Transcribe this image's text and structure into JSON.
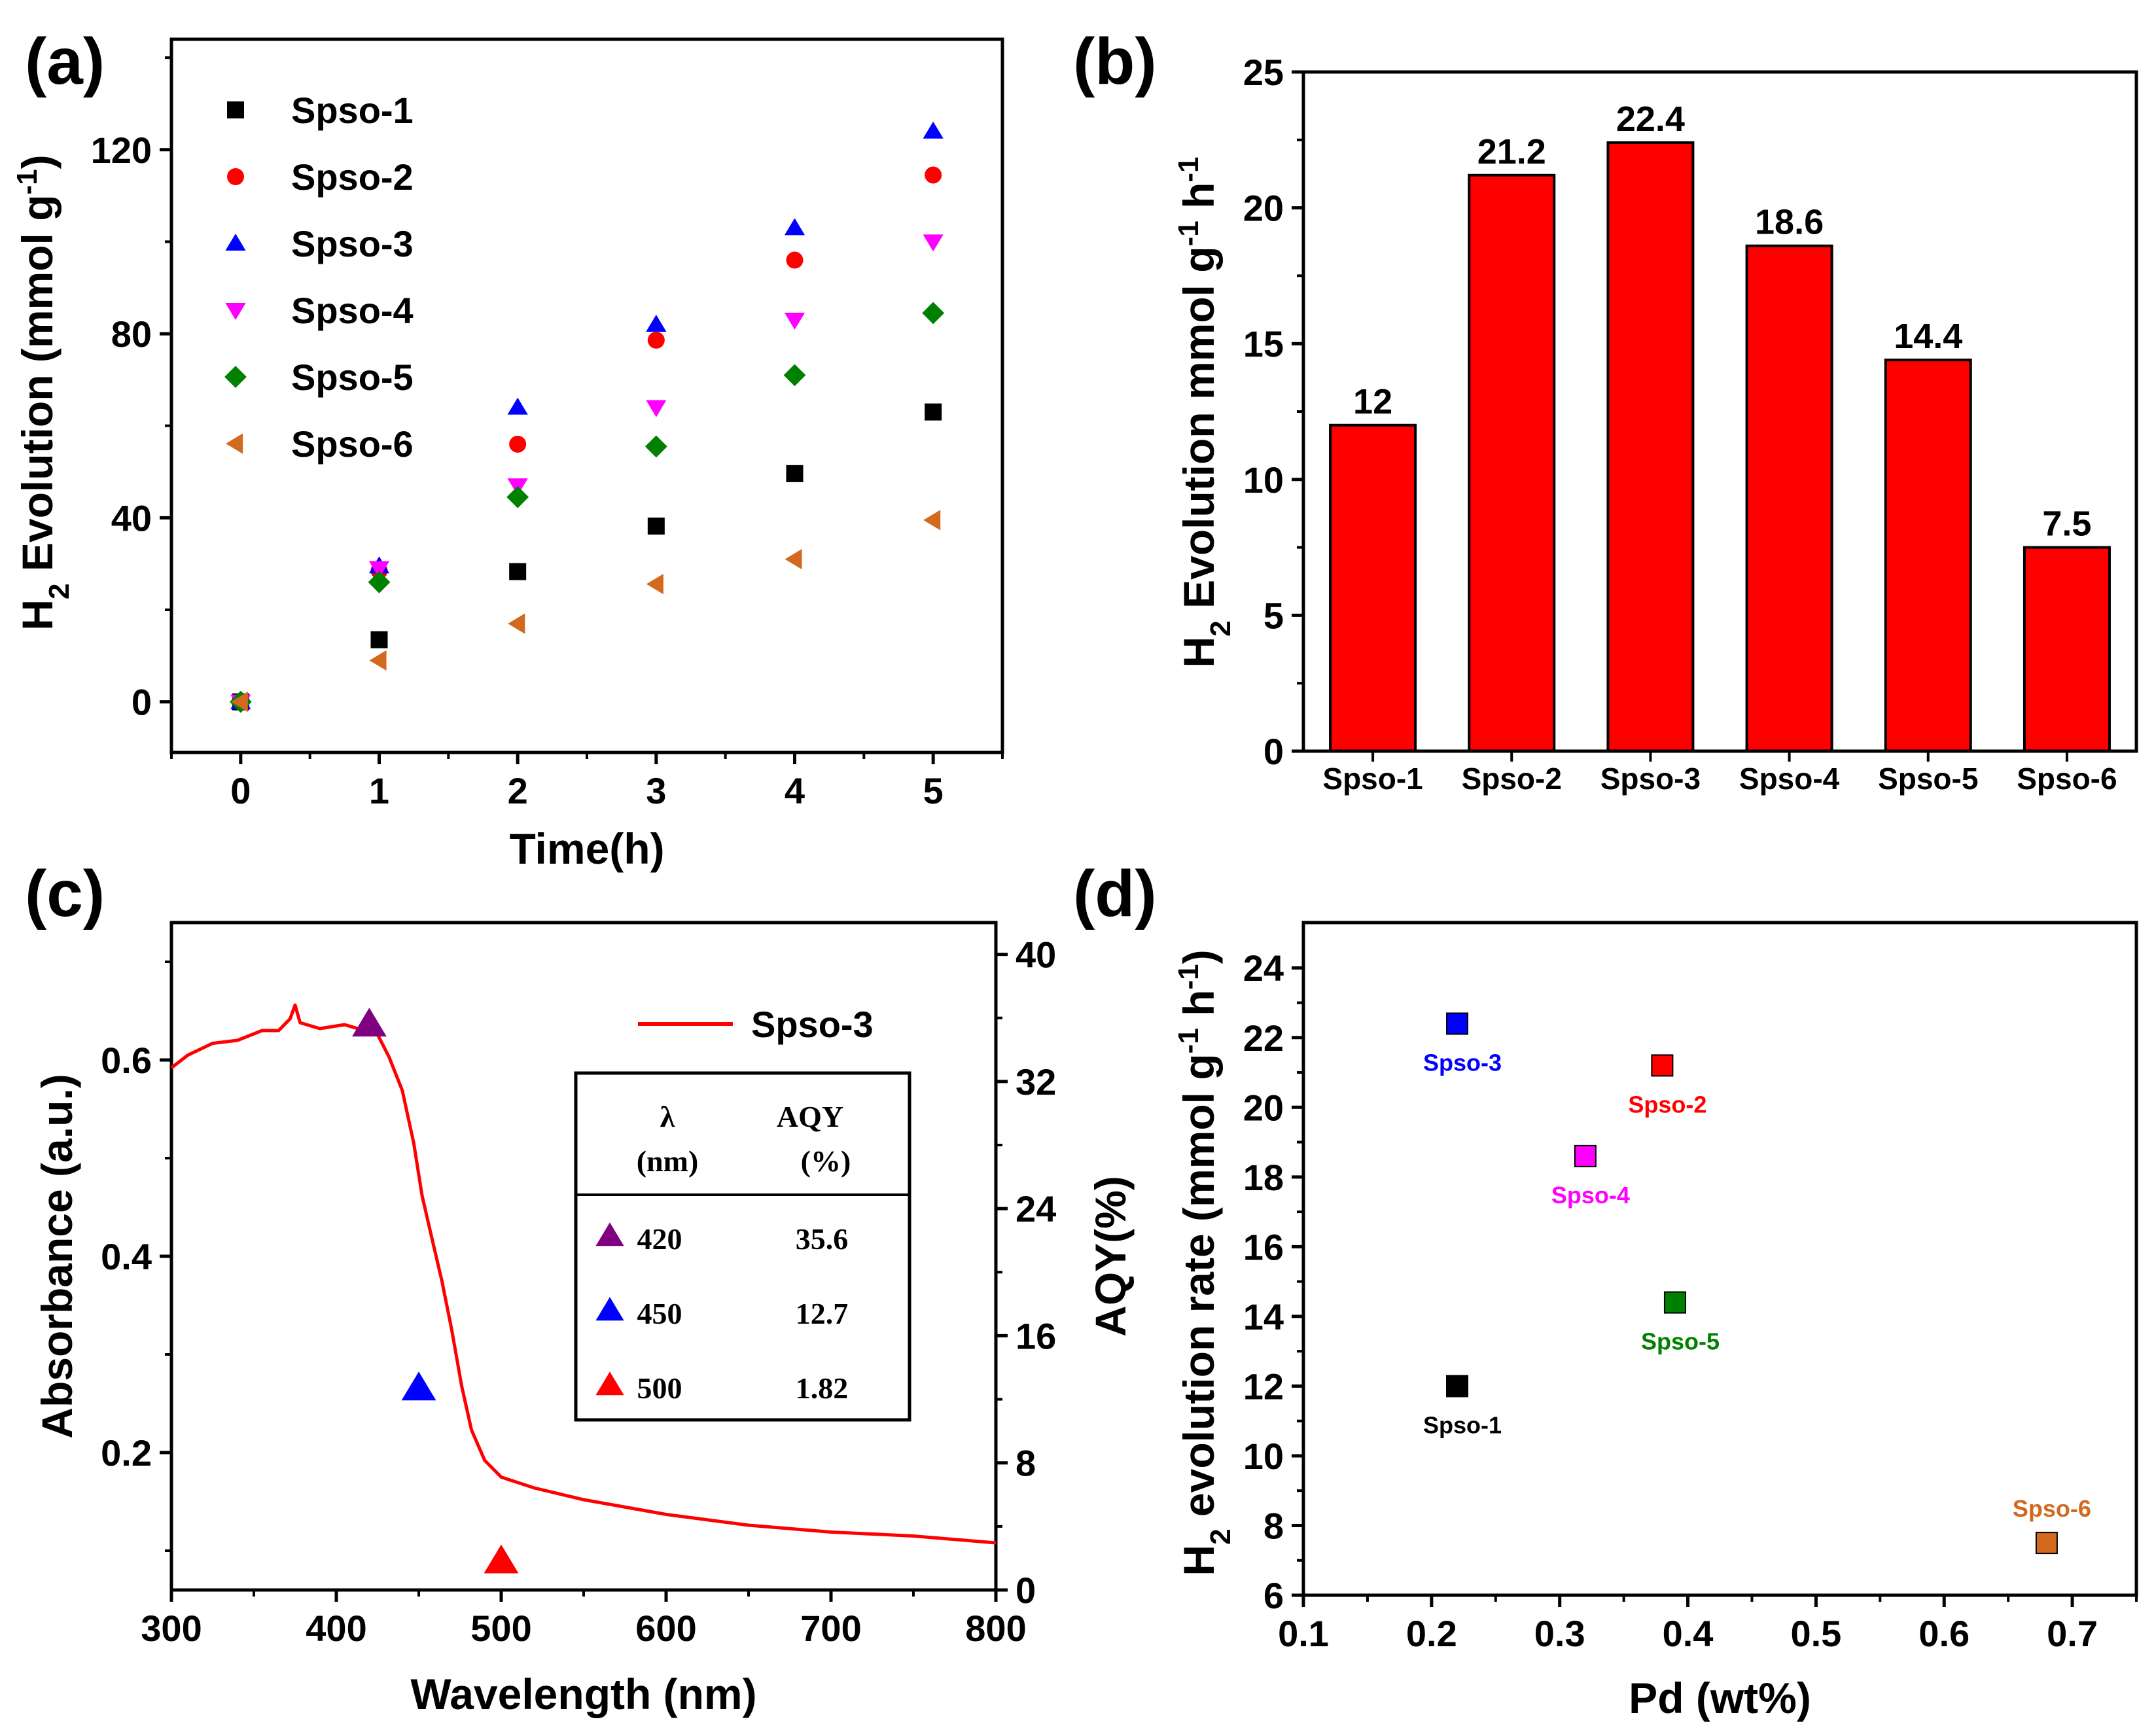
{
  "chart_data": [
    {
      "panel": "(a)",
      "type": "scatter",
      "xlabel": "Time(h)",
      "ylabel": "H2 Evolution (mmol g-1)",
      "ylabel_parts": {
        "main": "H",
        "sub": "2",
        "rest": " Evolution (mmol g",
        "sup": "-1",
        "end": ")"
      },
      "xlim": [
        -0.5,
        5.5
      ],
      "ylim": [
        -11,
        144
      ],
      "xticks": [
        0,
        1,
        2,
        3,
        4,
        5
      ],
      "yticks": [
        0,
        40,
        80,
        120
      ],
      "x": [
        0,
        1,
        2,
        3,
        4,
        5
      ],
      "series": [
        {
          "name": "Spso-1",
          "marker": "square",
          "color": "#000000",
          "values": [
            0,
            13.5,
            28.3,
            38.2,
            49.6,
            63
          ]
        },
        {
          "name": "Spso-2",
          "marker": "circle",
          "color": "#ff0000",
          "values": [
            0,
            28.5,
            56,
            78.6,
            96,
            114.5
          ]
        },
        {
          "name": "Spso-3",
          "marker": "triangle-up",
          "color": "#0000ff",
          "values": [
            0,
            29.5,
            64,
            82,
            103,
            124
          ]
        },
        {
          "name": "Spso-4",
          "marker": "triangle-down",
          "color": "#ff00ff",
          "values": [
            0,
            29,
            47,
            64,
            83,
            100
          ]
        },
        {
          "name": "Spso-5",
          "marker": "diamond",
          "color": "#008000",
          "values": [
            0,
            26,
            44.5,
            55.5,
            71,
            84.5
          ]
        },
        {
          "name": "Spso-6",
          "marker": "triangle-left",
          "color": "#d2691e",
          "values": [
            0,
            9,
            17,
            25.6,
            31,
            39.5
          ]
        }
      ]
    },
    {
      "panel": "(b)",
      "type": "bar",
      "ylabel": "H2 Evolution mmol g-1 h-1",
      "ylabel_parts": {
        "main": "H",
        "sub": "2",
        "rest": " Evolution mmol g",
        "sup": "-1",
        "mid": " h",
        "sup2": "-1"
      },
      "categories": [
        "Spso-1",
        "Spso-2",
        "Spso-3",
        "Spso-4",
        "Spso-5",
        "Spso-6"
      ],
      "values": [
        12,
        21.2,
        22.4,
        18.6,
        14.4,
        7.5
      ],
      "value_labels": [
        "12",
        "21.2",
        "22.4",
        "18.6",
        "14.4",
        "7.5"
      ],
      "ylim": [
        0,
        25
      ],
      "yticks": [
        0,
        5,
        10,
        15,
        20,
        25
      ],
      "bar_color": "#ff0000"
    },
    {
      "panel": "(c)",
      "type": "line",
      "xlabel": "Wavelength (nm)",
      "ylabel": "Absorbance (a.u.)",
      "y2label": "AQY(%)",
      "xlim": [
        300,
        800
      ],
      "ylim": [
        0.06,
        0.74
      ],
      "y2lim": [
        0,
        42
      ],
      "xticks": [
        300,
        400,
        500,
        600,
        700,
        800
      ],
      "yticks": [
        0.2,
        0.4,
        0.6
      ],
      "y2ticks": [
        0,
        8,
        16,
        24,
        32,
        40
      ],
      "series": [
        {
          "name": "Spso-3",
          "color": "#ff0000",
          "x": [
            300,
            310,
            325,
            340,
            355,
            365,
            372,
            375,
            378,
            390,
            405,
            415,
            425,
            432,
            440,
            447,
            452,
            458,
            464,
            470,
            476,
            482,
            490,
            500,
            520,
            550,
            600,
            650,
            700,
            750,
            800
          ],
          "y": [
            0.592,
            0.607,
            0.615,
            0.622,
            0.628,
            0.632,
            0.64,
            0.658,
            0.636,
            0.634,
            0.634,
            0.633,
            0.624,
            0.605,
            0.567,
            0.515,
            0.462,
            0.418,
            0.375,
            0.325,
            0.268,
            0.223,
            0.192,
            0.175,
            0.164,
            0.152,
            0.137,
            0.126,
            0.119,
            0.115,
            0.108
          ]
        }
      ],
      "aqy_points": [
        {
          "wavelength": 420,
          "aqy": 35.6,
          "color": "#800080"
        },
        {
          "wavelength": 450,
          "aqy": 12.7,
          "color": "#0000ff"
        },
        {
          "wavelength": 500,
          "aqy": 1.82,
          "color": "#ff0000"
        }
      ],
      "table": {
        "headers": [
          {
            "line1": "λ",
            "line2": "(nm)"
          },
          {
            "line1": "AQY",
            "line2": "(%)"
          }
        ],
        "rows": [
          {
            "wavelength": "420",
            "aqy": "35.6",
            "color": "#800080"
          },
          {
            "wavelength": "450",
            "aqy": "12.7",
            "color": "#0000ff"
          },
          {
            "wavelength": "500",
            "aqy": "1.82",
            "color": "#ff0000"
          }
        ]
      }
    },
    {
      "panel": "(d)",
      "type": "scatter",
      "xlabel": "Pd (wt%)",
      "ylabel": "H2 evolution rate (mmol g-1 h-1)",
      "ylabel_parts": {
        "main": "H",
        "sub": "2",
        "rest": " evolution rate (mmol g",
        "sup": "-1",
        "mid": " h",
        "sup2": "-1",
        "end": ")"
      },
      "xlim": [
        0.1,
        0.75
      ],
      "ylim": [
        6,
        25.3
      ],
      "xticks": [
        0.1,
        0.2,
        0.3,
        0.4,
        0.5,
        0.6,
        0.7
      ],
      "yticks": [
        6,
        8,
        10,
        12,
        14,
        16,
        18,
        20,
        22,
        24
      ],
      "points": [
        {
          "label": "Spso-1",
          "x": 0.22,
          "y": 12.0,
          "color": "#000000",
          "label_pos": "below"
        },
        {
          "label": "Spso-2",
          "x": 0.38,
          "y": 21.2,
          "color": "#ff0000",
          "label_pos": "below"
        },
        {
          "label": "Spso-3",
          "x": 0.22,
          "y": 22.4,
          "color": "#0000ff",
          "label_pos": "below"
        },
        {
          "label": "Spso-4",
          "x": 0.32,
          "y": 18.6,
          "color": "#ff00ff",
          "label_pos": "below"
        },
        {
          "label": "Spso-5",
          "x": 0.39,
          "y": 14.4,
          "color": "#008000",
          "label_pos": "below"
        },
        {
          "label": "Spso-6",
          "x": 0.68,
          "y": 7.5,
          "color": "#d2691e",
          "label_pos": "above"
        }
      ]
    }
  ]
}
